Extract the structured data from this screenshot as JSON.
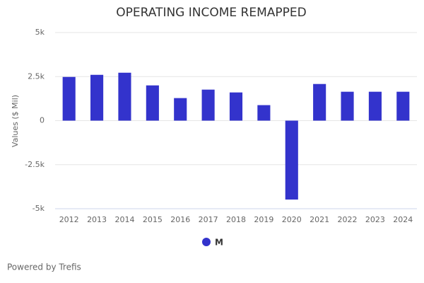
{
  "chart_data": {
    "type": "bar",
    "title": "OPERATING INCOME REMAPPED",
    "y_label": "Values ($ Mil)",
    "categories": [
      "2012",
      "2013",
      "2014",
      "2015",
      "2016",
      "2017",
      "2018",
      "2019",
      "2020",
      "2021",
      "2022",
      "2023",
      "2024"
    ],
    "series": [
      {
        "name": "M",
        "color": "#3333cc",
        "values": [
          2480,
          2600,
          2720,
          2000,
          1280,
          1760,
          1600,
          880,
          -4480,
          2080,
          1640,
          1640,
          1640
        ]
      }
    ],
    "ylim": [
      -5000,
      5000
    ],
    "yticks": [
      {
        "value": -5000,
        "label": "-5k"
      },
      {
        "value": -2500,
        "label": "-2.5k"
      },
      0,
      {
        "value": 2500,
        "label": "2.5k"
      },
      {
        "value": 5000,
        "label": "5k"
      }
    ],
    "grid": true,
    "legend": "bottom"
  },
  "credit": "Powered by Trefis"
}
